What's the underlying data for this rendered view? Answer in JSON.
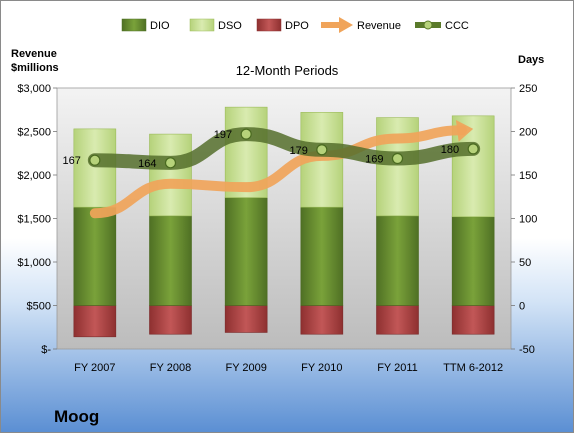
{
  "chart_data": {
    "type": "bar",
    "title": "12-Month Periods",
    "company": "Moog",
    "categories": [
      "FY 2007",
      "FY 2008",
      "FY 2009",
      "FY 2010",
      "FY 2011",
      "TTM 6-2012"
    ],
    "left_axis": {
      "label_line1": "Revenue",
      "label_line2": "$millions",
      "ylim": [
        0,
        3000
      ],
      "ticks": [
        0,
        500,
        1000,
        1500,
        2000,
        2500,
        3000
      ],
      "tick_labels": [
        "$-",
        "$500",
        "$1,000",
        "$1,500",
        "$2,000",
        "$2,500",
        "$3,000"
      ]
    },
    "right_axis": {
      "label": "Days",
      "ylim": [
        -50,
        250
      ],
      "ticks": [
        -50,
        0,
        50,
        100,
        150,
        200,
        250
      ],
      "tick_labels": [
        "-50",
        "0",
        "50",
        "100",
        "150",
        "200",
        "250"
      ]
    },
    "series": [
      {
        "name": "DIO",
        "kind": "stacked-bar",
        "axis": "right",
        "values": [
          113,
          103,
          124,
          113,
          103,
          102
        ],
        "color": "#6b8f2e"
      },
      {
        "name": "DSO",
        "kind": "stacked-bar",
        "axis": "right",
        "values": [
          90,
          94,
          104,
          109,
          113,
          116
        ],
        "color": "#c8e08e"
      },
      {
        "name": "DPO",
        "kind": "negative-bar",
        "axis": "right",
        "values": [
          -36,
          -33,
          -31,
          -33,
          -33,
          -33
        ],
        "color": "#b84848"
      },
      {
        "name": "Revenue",
        "kind": "line-arrow",
        "axis": "left",
        "values": [
          1560,
          1900,
          1860,
          2220,
          2420,
          2530
        ],
        "color": "#f0a45a"
      },
      {
        "name": "CCC",
        "kind": "line-markers",
        "axis": "right",
        "values": [
          167,
          164,
          197,
          179,
          169,
          180
        ],
        "color": "#5a7a2a"
      }
    ],
    "data_labels": [
      "167",
      "164",
      "197",
      "179",
      "169",
      "180"
    ],
    "legend_position": "top",
    "grid": false
  }
}
